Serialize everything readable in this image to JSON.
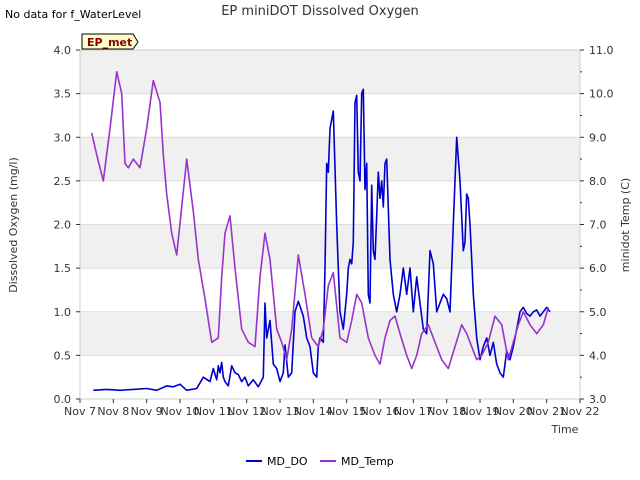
{
  "chart_data": {
    "type": "line",
    "title": "EP miniDOT Dissolved Oxygen",
    "note": "No data for f_WaterLevel",
    "site_label": "EP_met",
    "xlabel": "Time",
    "ylabel_left": "Dissolved Oxygen (mg/l)",
    "ylabel_right": "minidot Temp (C)",
    "x_unit": "days after Nov 7",
    "x_ticks": [
      "Nov 7",
      "Nov 8",
      "Nov 9",
      "Nov 10",
      "Nov 11",
      "Nov 12",
      "Nov 13",
      "Nov 14",
      "Nov 15",
      "Nov 16",
      "Nov 17",
      "Nov 18",
      "Nov 19",
      "Nov 20",
      "Nov 21",
      "Nov 22"
    ],
    "xlim": [
      0,
      15
    ],
    "ylim_left": [
      0.0,
      4.0
    ],
    "ylim_right": [
      3.0,
      11.0
    ],
    "y_ticks_left": [
      "0.0",
      "0.5",
      "1.0",
      "1.5",
      "2.0",
      "2.5",
      "3.0",
      "3.5",
      "4.0"
    ],
    "y_ticks_right": [
      "3.0",
      "4.0",
      "5.0",
      "6.0",
      "7.0",
      "8.0",
      "9.0",
      "10.0",
      "11.0"
    ],
    "grid": true,
    "legend_position": "bottom",
    "colors": {
      "MD_DO": "#0000cc",
      "MD_Temp": "#9933cc",
      "band": "#f0f0f0",
      "badge_bg": "#ffffcc"
    },
    "series": [
      {
        "name": "MD_DO",
        "axis": "left",
        "x": [
          0.4,
          0.8,
          1.2,
          1.6,
          2.0,
          2.3,
          2.6,
          2.8,
          3.0,
          3.2,
          3.5,
          3.7,
          3.9,
          4.0,
          4.1,
          4.15,
          4.2,
          4.25,
          4.3,
          4.35,
          4.45,
          4.55,
          4.65,
          4.75,
          4.85,
          4.95,
          5.05,
          5.2,
          5.35,
          5.5,
          5.55,
          5.6,
          5.7,
          5.8,
          5.9,
          6.0,
          6.1,
          6.15,
          6.25,
          6.35,
          6.45,
          6.55,
          6.7,
          6.8,
          6.9,
          7.0,
          7.1,
          7.15,
          7.2,
          7.3,
          7.35,
          7.4,
          7.45,
          7.5,
          7.6,
          7.7,
          7.75,
          7.8,
          7.9,
          8.0,
          8.05,
          8.1,
          8.15,
          8.2,
          8.25,
          8.3,
          8.35,
          8.4,
          8.45,
          8.5,
          8.55,
          8.6,
          8.65,
          8.7,
          8.75,
          8.8,
          8.85,
          8.9,
          8.95,
          9.0,
          9.05,
          9.1,
          9.15,
          9.2,
          9.3,
          9.4,
          9.5,
          9.6,
          9.7,
          9.8,
          9.9,
          10.0,
          10.1,
          10.2,
          10.3,
          10.4,
          10.5,
          10.6,
          10.7,
          10.8,
          10.9,
          11.0,
          11.1,
          11.2,
          11.3,
          11.4,
          11.5,
          11.55,
          11.6,
          11.65,
          11.7,
          11.75,
          11.8,
          11.9,
          12.0,
          12.1,
          12.2,
          12.3,
          12.4,
          12.5,
          12.6,
          12.7,
          12.8,
          12.9,
          13.0,
          13.1,
          13.2,
          13.3,
          13.4,
          13.5,
          13.6,
          13.7,
          13.8,
          13.9,
          14.0,
          14.1
        ],
        "values": [
          0.1,
          0.11,
          0.1,
          0.11,
          0.12,
          0.1,
          0.15,
          0.14,
          0.17,
          0.1,
          0.12,
          0.25,
          0.2,
          0.35,
          0.22,
          0.38,
          0.3,
          0.42,
          0.25,
          0.2,
          0.15,
          0.38,
          0.3,
          0.28,
          0.2,
          0.25,
          0.15,
          0.22,
          0.14,
          0.25,
          1.1,
          0.7,
          0.9,
          0.4,
          0.35,
          0.2,
          0.3,
          0.62,
          0.25,
          0.3,
          1.0,
          1.12,
          0.95,
          0.7,
          0.6,
          0.3,
          0.25,
          0.6,
          0.7,
          0.65,
          1.5,
          2.7,
          2.6,
          3.1,
          3.3,
          2.0,
          1.5,
          1.0,
          0.8,
          1.2,
          1.5,
          1.6,
          1.55,
          1.8,
          3.4,
          3.48,
          2.6,
          2.5,
          3.5,
          3.55,
          2.4,
          2.7,
          1.2,
          1.1,
          2.45,
          1.7,
          1.6,
          2.1,
          2.6,
          2.3,
          2.5,
          2.2,
          2.7,
          2.75,
          1.6,
          1.2,
          1.0,
          1.2,
          1.5,
          1.2,
          1.5,
          1.0,
          1.4,
          1.1,
          0.8,
          0.75,
          1.7,
          1.55,
          1.0,
          1.1,
          1.2,
          1.15,
          1.0,
          2.0,
          3.0,
          2.5,
          1.7,
          1.8,
          2.35,
          2.3,
          2.0,
          1.6,
          1.2,
          0.7,
          0.45,
          0.6,
          0.7,
          0.5,
          0.65,
          0.4,
          0.3,
          0.25,
          0.55,
          0.45,
          0.6,
          0.8,
          1.0,
          1.05,
          0.98,
          0.95,
          1.0,
          1.02,
          0.95,
          1.0,
          1.05,
          1.0
        ],
        "color": "#0000cc"
      },
      {
        "name": "MD_Temp",
        "axis": "right",
        "x": [
          0.35,
          0.5,
          0.7,
          0.9,
          1.1,
          1.25,
          1.35,
          1.45,
          1.6,
          1.8,
          2.0,
          2.2,
          2.4,
          2.5,
          2.6,
          2.75,
          2.9,
          3.05,
          3.2,
          3.4,
          3.55,
          3.75,
          3.95,
          4.15,
          4.25,
          4.35,
          4.5,
          4.65,
          4.85,
          5.05,
          5.25,
          5.4,
          5.55,
          5.7,
          5.9,
          6.05,
          6.2,
          6.35,
          6.55,
          6.75,
          6.95,
          7.15,
          7.3,
          7.45,
          7.6,
          7.8,
          8.0,
          8.15,
          8.3,
          8.45,
          8.65,
          8.85,
          9.0,
          9.15,
          9.3,
          9.45,
          9.6,
          9.8,
          9.95,
          10.1,
          10.25,
          10.45,
          10.65,
          10.85,
          11.05,
          11.25,
          11.45,
          11.6,
          11.75,
          11.9,
          12.05,
          12.25,
          12.45,
          12.65,
          12.85,
          13.0,
          13.15,
          13.3,
          13.5,
          13.7,
          13.9,
          14.05
        ],
        "values": [
          9.1,
          8.6,
          8.0,
          9.2,
          10.5,
          10.0,
          8.4,
          8.3,
          8.5,
          8.3,
          9.2,
          10.3,
          9.8,
          8.6,
          7.7,
          6.8,
          6.3,
          7.4,
          8.5,
          7.3,
          6.2,
          5.3,
          4.3,
          4.4,
          5.8,
          6.8,
          7.2,
          6.0,
          4.6,
          4.3,
          4.2,
          5.8,
          6.8,
          6.2,
          4.6,
          4.3,
          3.9,
          4.6,
          6.3,
          5.4,
          4.4,
          4.2,
          4.6,
          5.6,
          5.9,
          4.4,
          4.3,
          4.8,
          5.4,
          5.2,
          4.4,
          4.0,
          3.8,
          4.4,
          4.8,
          4.9,
          4.5,
          4.0,
          3.7,
          4.0,
          4.5,
          4.7,
          4.3,
          3.9,
          3.7,
          4.2,
          4.7,
          4.5,
          4.2,
          3.9,
          4.0,
          4.3,
          4.9,
          4.7,
          3.9,
          4.3,
          4.7,
          5.0,
          4.7,
          4.5,
          4.7,
          5.1
        ],
        "color": "#9933cc"
      }
    ]
  }
}
